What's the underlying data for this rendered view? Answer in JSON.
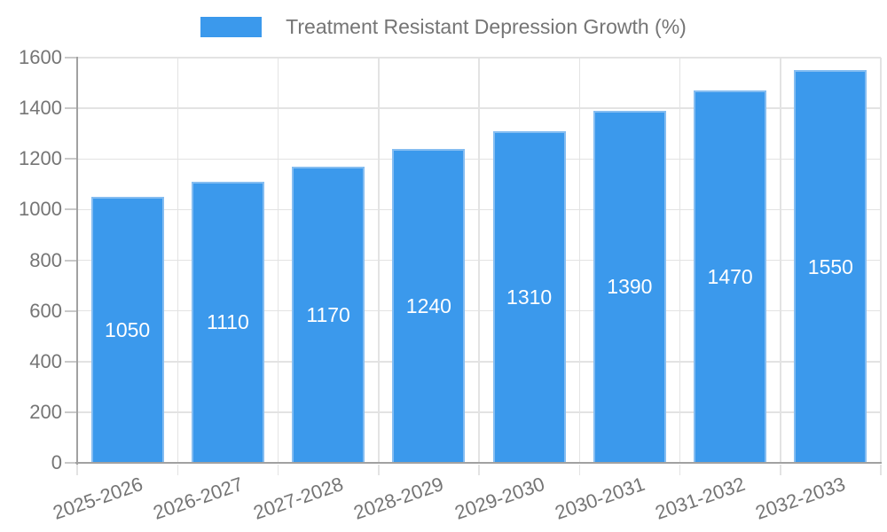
{
  "chart": {
    "legend": {
      "label": "Treatment Resistant Depression Growth (%)",
      "swatch_color": "#3b99ec"
    }
  },
  "chart_data": {
    "type": "bar",
    "title": "Treatment Resistant Depression Growth (%)",
    "categories": [
      "2025-2026",
      "2026-2027",
      "2027-2028",
      "2028-2029",
      "2029-2030",
      "2030-2031",
      "2031-2032",
      "2032-2033"
    ],
    "values": [
      1050,
      1110,
      1170,
      1240,
      1310,
      1390,
      1470,
      1550
    ],
    "ytick_labels": [
      "0",
      "200",
      "400",
      "600",
      "800",
      "1000",
      "1200",
      "1400",
      "1600"
    ],
    "xlabel": "",
    "ylabel": "",
    "ylim": [
      0,
      1600
    ],
    "ytick_step": 200,
    "grid": true,
    "legend_position": "top-center",
    "x_label_rotation_deg": -19,
    "bar_color": "#3b99ec",
    "bar_border_color": "#85bdf1",
    "data_label_color": "#ffffff",
    "axis_text_color": "#757575",
    "grid_color": "#e3e3e3",
    "tick_color": "#c9c9c9",
    "axis_line_color": "#a1a1a1",
    "background_color": "#ffffff"
  }
}
